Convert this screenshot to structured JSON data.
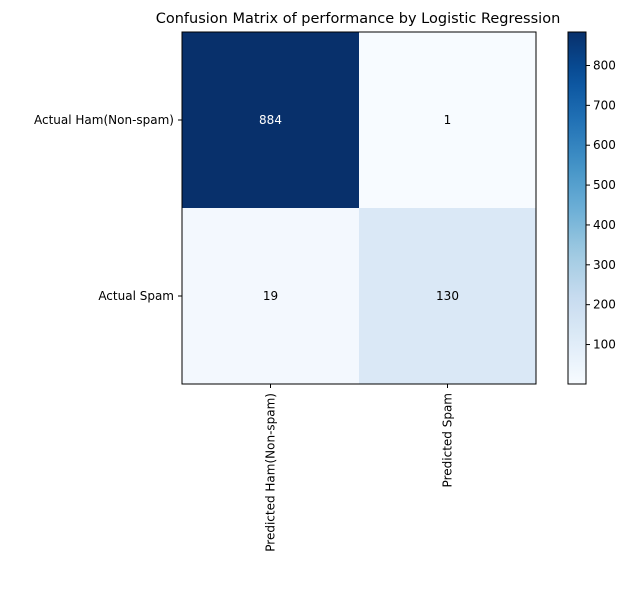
{
  "chart_data": {
    "type": "heatmap",
    "title": "Confusion Matrix of performance by Logistic Regression",
    "xlabel": "",
    "ylabel": "",
    "x_categories": [
      "Predicted Ham(Non-spam)",
      "Predicted Spam"
    ],
    "y_categories": [
      "Actual Ham(Non-spam)",
      "Actual Spam"
    ],
    "values": [
      [
        884,
        1
      ],
      [
        19,
        130
      ]
    ],
    "colormap": "Blues",
    "colorbar": {
      "ticks": [
        100,
        200,
        300,
        400,
        500,
        600,
        700,
        800
      ],
      "min": 1,
      "max": 884
    },
    "text_color_dark_cell": "#ffffff",
    "text_color_light_cell": "#000000",
    "grid": false
  }
}
